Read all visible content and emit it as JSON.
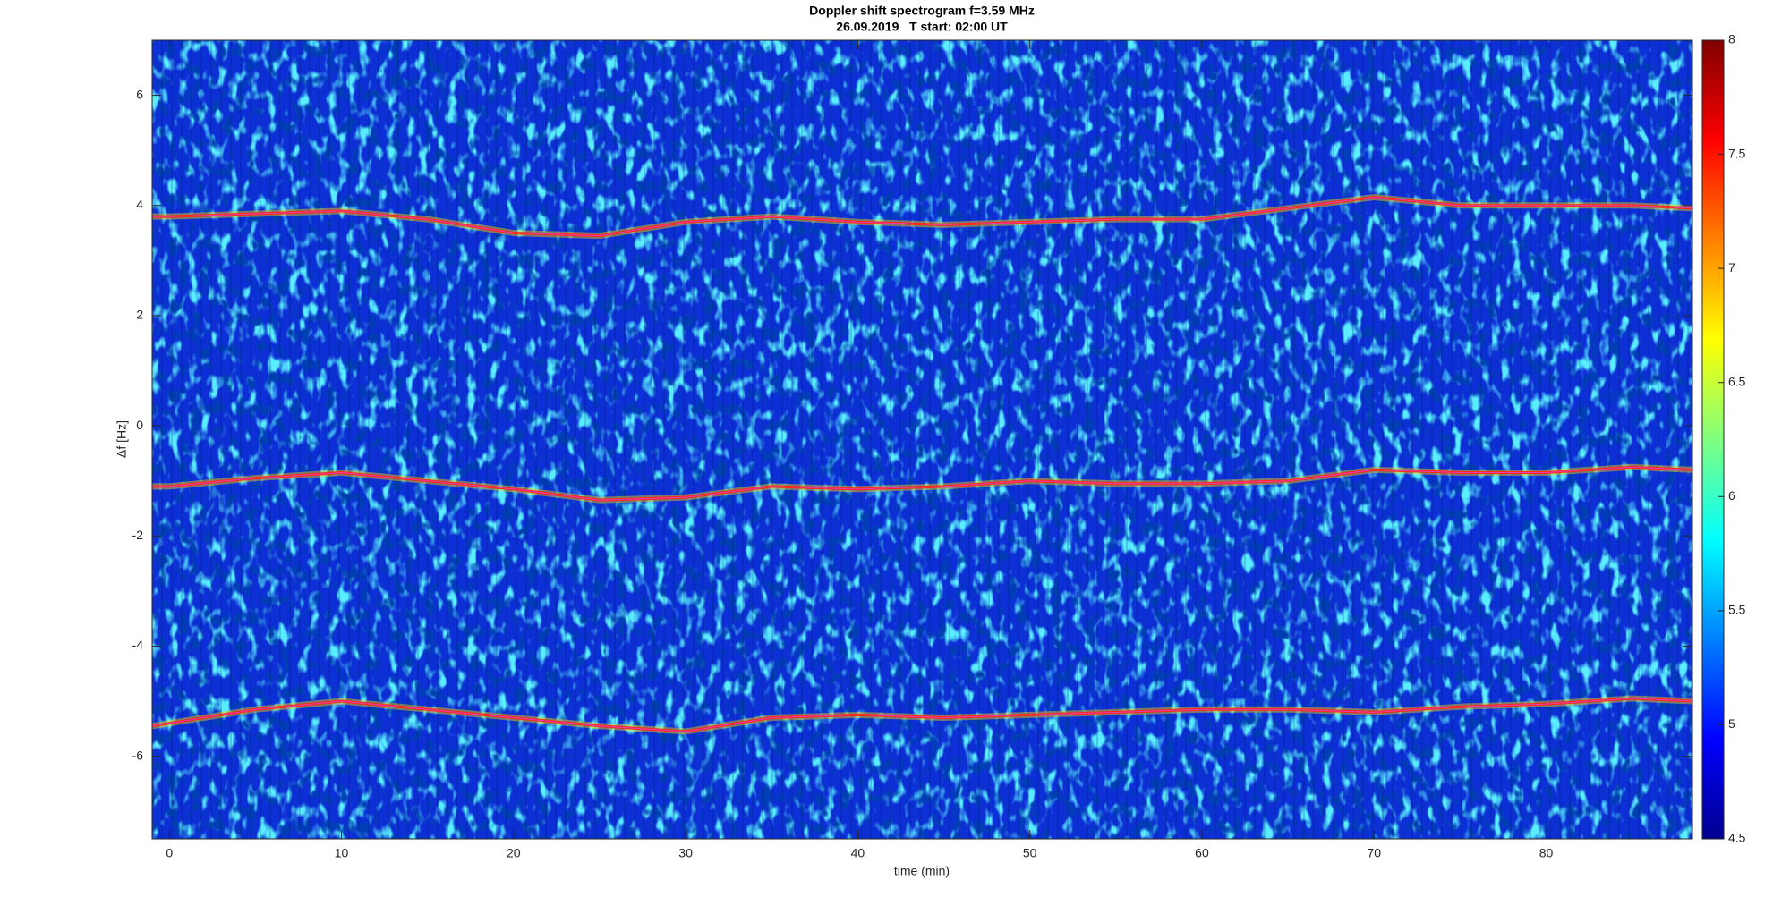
{
  "chart_data": {
    "type": "line",
    "title": "Doppler shift spectrogram f=3.59 MHz",
    "subtitle": "26.09.2019   T start: 02:00 UT",
    "x_label": "time (min)",
    "y_label": "Δf [Hz]",
    "x": [
      -1,
      0,
      5,
      10,
      15,
      20,
      25,
      30,
      35,
      40,
      45,
      50,
      55,
      60,
      65,
      70,
      75,
      80,
      85,
      88.5
    ],
    "series": [
      {
        "color": "#ff2a10",
        "values": [
          3.8,
          3.8,
          3.85,
          3.9,
          3.75,
          3.5,
          3.45,
          3.7,
          3.8,
          3.7,
          3.65,
          3.7,
          3.75,
          3.75,
          3.95,
          4.15,
          4.0,
          4.0,
          4.0,
          3.95
        ]
      },
      {
        "color": "#ff2a10",
        "values": [
          -1.1,
          -1.1,
          -0.95,
          -0.85,
          -1.0,
          -1.15,
          -1.35,
          -1.3,
          -1.1,
          -1.15,
          -1.1,
          -1.0,
          -1.05,
          -1.05,
          -1.0,
          -0.8,
          -0.85,
          -0.85,
          -0.75,
          -0.8
        ]
      },
      {
        "color": "#ff2a10",
        "values": [
          -5.45,
          -5.4,
          -5.15,
          -5.0,
          -5.15,
          -5.3,
          -5.45,
          -5.55,
          -5.3,
          -5.25,
          -5.3,
          -5.25,
          -5.2,
          -5.15,
          -5.15,
          -5.2,
          -5.1,
          -5.05,
          -4.95,
          -5.0
        ]
      }
    ],
    "xlim": [
      -1,
      88.5
    ],
    "xticks": [
      0,
      10,
      20,
      30,
      40,
      50,
      60,
      70,
      80
    ],
    "ylim": [
      -7.5,
      7
    ],
    "yticks": [
      -6,
      -4,
      -2,
      0,
      2,
      4,
      6
    ],
    "colormap": "jet",
    "clim": [
      4.5,
      8
    ],
    "cticks": [
      4.5,
      5,
      5.5,
      6,
      6.5,
      7,
      7.5,
      8
    ]
  }
}
